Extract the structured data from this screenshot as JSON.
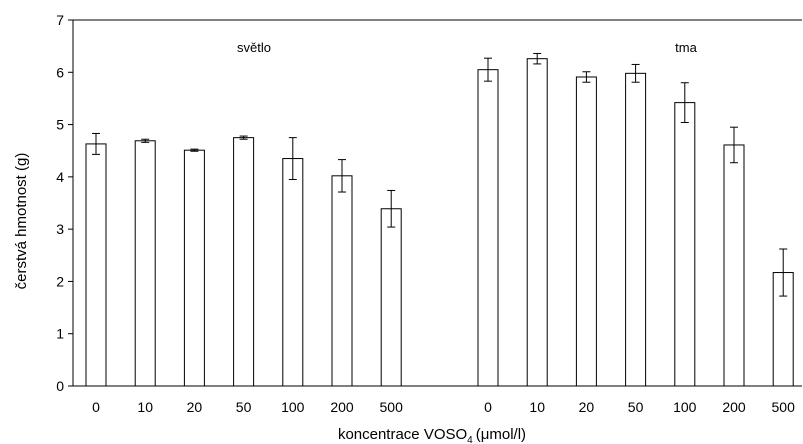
{
  "chart_data": {
    "type": "bar",
    "xlabel_main": "koncentrace VOSO",
    "xlabel_sub": "4",
    "xlabel_unit": "(μmol/l)",
    "ylabel": "čerstvá hmotnost (g)",
    "ylim": [
      0,
      7
    ],
    "yticks": [
      "0",
      "1",
      "2",
      "3",
      "4",
      "5",
      "6",
      "7"
    ],
    "grid": false,
    "bar_fill": "#ffffff",
    "bar_stroke": "#000000",
    "groups": [
      {
        "label": "světlo",
        "categories": [
          "0",
          "10",
          "20",
          "50",
          "100",
          "200",
          "500"
        ],
        "values": [
          4.63,
          4.69,
          4.51,
          4.75,
          4.35,
          4.02,
          3.39
        ],
        "errors": [
          0.2,
          0.03,
          0.02,
          0.03,
          0.4,
          0.31,
          0.35
        ]
      },
      {
        "label": "tma",
        "categories": [
          "0",
          "10",
          "20",
          "50",
          "100",
          "200",
          "500"
        ],
        "values": [
          6.05,
          6.26,
          5.91,
          5.98,
          5.42,
          4.61,
          2.17
        ],
        "errors": [
          0.22,
          0.1,
          0.1,
          0.17,
          0.38,
          0.34,
          0.45
        ]
      }
    ]
  }
}
